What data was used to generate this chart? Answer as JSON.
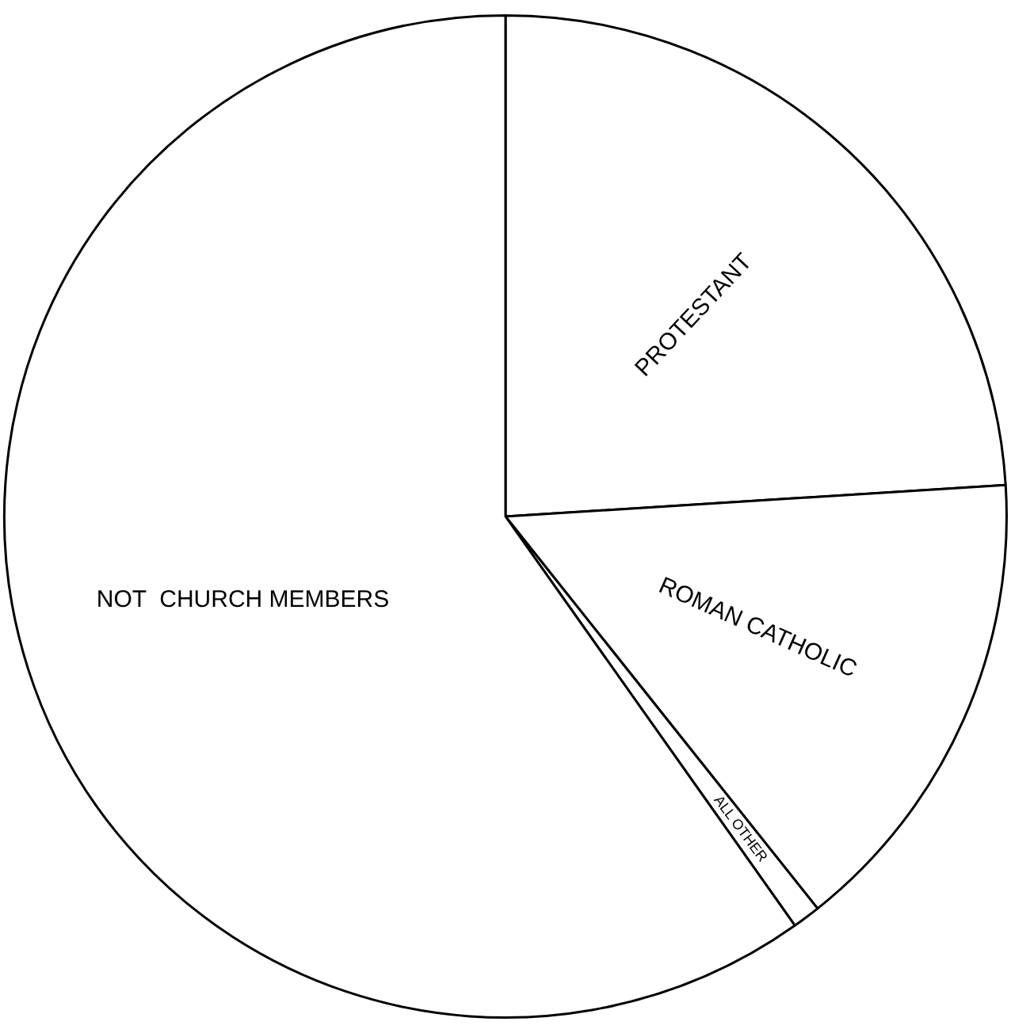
{
  "chart_data": {
    "type": "pie",
    "categories": [
      "PROTESTANT",
      "ROMAN CATHOLIC",
      "ALL OTHER",
      "NOT  CHURCH MEMBERS"
    ],
    "values": [
      24,
      15.3,
      0.9,
      59.8
    ],
    "colors": [
      "#ffffff",
      "#ffffff",
      "#ffffff",
      "#ffffff"
    ],
    "legend": false
  }
}
